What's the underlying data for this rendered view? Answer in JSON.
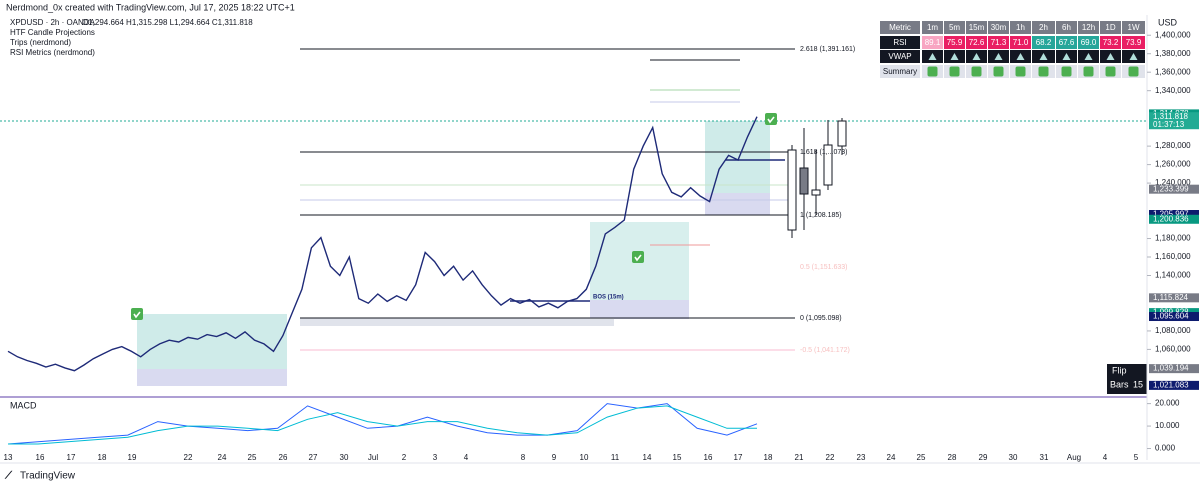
{
  "header": {
    "credit": "Nerdmond_0x created with TradingView.com, Jul 17, 2025 18:22 UTC+1"
  },
  "legend": {
    "symbol": "XPDUSD · 2h · OANDA",
    "ohlc": "O1,294.664  H1,315.298  L1,294.664  C1,311.818",
    "indicators": [
      "HTF Candle Projections",
      "Trips (nerdmond)",
      "RSI Metrics (nerdmond)"
    ]
  },
  "axis": {
    "currency": "USD"
  },
  "price_chart": {
    "line_color": "#1e2a78",
    "closes": [
      1058000,
      1052000,
      1048000,
      1045000,
      1041000,
      1044000,
      1040000,
      1037000,
      1043000,
      1050000,
      1055000,
      1060000,
      1063000,
      1058000,
      1052000,
      1060000,
      1066000,
      1070000,
      1068000,
      1073000,
      1071000,
      1076000,
      1074000,
      1078000,
      1072000,
      1079000,
      1070000,
      1066000,
      1058000,
      1075000,
      1100000,
      1125000,
      1170000,
      1181000,
      1150000,
      1140000,
      1160000,
      1115000,
      1110000,
      1120000,
      1112000,
      1118000,
      1113000,
      1130000,
      1165000,
      1155000,
      1140000,
      1150000,
      1135000,
      1145000,
      1130000,
      1118000,
      1108000,
      1115000,
      1110000,
      1114000,
      1106000,
      1110000,
      1105000,
      1112000,
      1115000,
      1125000,
      1150000,
      1185000,
      1192000,
      1200000,
      1255000,
      1280000,
      1300000,
      1250000,
      1230000,
      1225000,
      1235000,
      1226000,
      1220000,
      1255000,
      1270000,
      1265000,
      1290000,
      1311818
    ],
    "ylim": [
      1421900,
      1008500
    ],
    "yticks": [
      {
        "value": 1400000,
        "label": "1,400,000"
      },
      {
        "value": 1380000,
        "label": "1,380,000"
      },
      {
        "value": 1360000,
        "label": "1,360,000"
      },
      {
        "value": 1340000,
        "label": "1,340,000"
      },
      {
        "value": 1280000,
        "label": "1,280,000"
      },
      {
        "value": 1260000,
        "label": "1,260,000"
      },
      {
        "value": 1240000,
        "label": "1,240,000"
      },
      {
        "value": 1180000,
        "label": "1,180,000"
      },
      {
        "value": 1160000,
        "label": "1,160,000"
      },
      {
        "value": 1140000,
        "label": "1,140,000"
      },
      {
        "value": 1080000,
        "label": "1,080,000"
      },
      {
        "value": 1060000,
        "label": "1,060,000"
      }
    ],
    "price_tags": [
      {
        "value": 1314878,
        "label": "1,314.878",
        "color": "#089981"
      },
      {
        "value": 1311818,
        "label": "1,311.818",
        "color": "#22ab94"
      },
      {
        "value": 1233399,
        "label": "1,233.399",
        "color": "#787b86"
      },
      {
        "value": 1205997,
        "label": "1,205.997",
        "color": "#0d1b6e"
      },
      {
        "value": 1200836,
        "label": "1,200.836",
        "color": "#089981"
      },
      {
        "value": 1115824,
        "label": "1,115.824",
        "color": "#787b86"
      },
      {
        "value": 1099828,
        "label": "1,099.828",
        "color": "#089981"
      },
      {
        "value": 1095604,
        "label": "1,095.604",
        "color": "#0d1b6e"
      },
      {
        "value": 1039194,
        "label": "1,039.194",
        "color": "#787b86"
      },
      {
        "value": 1021083,
        "label": "1,021.083",
        "color": "#0d1b6e"
      }
    ],
    "countdown": "01:37:13",
    "annotations": [
      "2.618 (1,391.161)",
      "1.618 (1,...073)",
      "1 (1,208.185)",
      "0.5 (1,151.633)",
      "BOS (15m)",
      "0 (1,095.098)",
      "-0.5 (1,041.172)"
    ]
  },
  "rsi_table": {
    "header": [
      "Metric",
      "1m",
      "5m",
      "15m",
      "30m",
      "1h",
      "2h",
      "6h",
      "12h",
      "1D",
      "1W"
    ],
    "rsi_label": "RSI",
    "rsi": [
      "89.1",
      "75.9",
      "72.6",
      "71.3",
      "71.0",
      "68.2",
      "67.6",
      "69.0",
      "73.2",
      "73.9"
    ],
    "vwap_label": "VWAP",
    "summary_label": "Summary"
  },
  "macd": {
    "title": "MACD",
    "ylim": [
      22.5,
      -6
    ],
    "yticks": [
      {
        "value": 20,
        "label": "20.000"
      },
      {
        "value": 10,
        "label": "10.000"
      },
      {
        "value": 0,
        "label": "0.000"
      }
    ],
    "series": [
      {
        "color": "#2962ff",
        "values": [
          2,
          3,
          4,
          5,
          6,
          12,
          10,
          9,
          8,
          9,
          19,
          14,
          9,
          10,
          14,
          10,
          7,
          6,
          6,
          8,
          20,
          18,
          20,
          9,
          6,
          11
        ]
      },
      {
        "color": "#00bcd4",
        "values": [
          2,
          2,
          3,
          4,
          5,
          8,
          10,
          10,
          9,
          8,
          13,
          16,
          12,
          10,
          12,
          12,
          9,
          7,
          6,
          7,
          14,
          18,
          19,
          14,
          9,
          9
        ]
      }
    ]
  },
  "x_axis": [
    "13",
    "16",
    "17",
    "18",
    "19",
    "22",
    "24",
    "25",
    "26",
    "27",
    "30",
    "Jul",
    "2",
    "3",
    "4",
    "8",
    "9",
    "10",
    "11",
    "14",
    "15",
    "16",
    "17",
    "18",
    "21",
    "22",
    "23",
    "24",
    "25",
    "28",
    "29",
    "30",
    "31",
    "Aug",
    "4",
    "5"
  ],
  "controls": {
    "flip": "Flip",
    "bars": "Bars",
    "bars_count": "15"
  },
  "footer": {
    "brand": "TradingView"
  }
}
